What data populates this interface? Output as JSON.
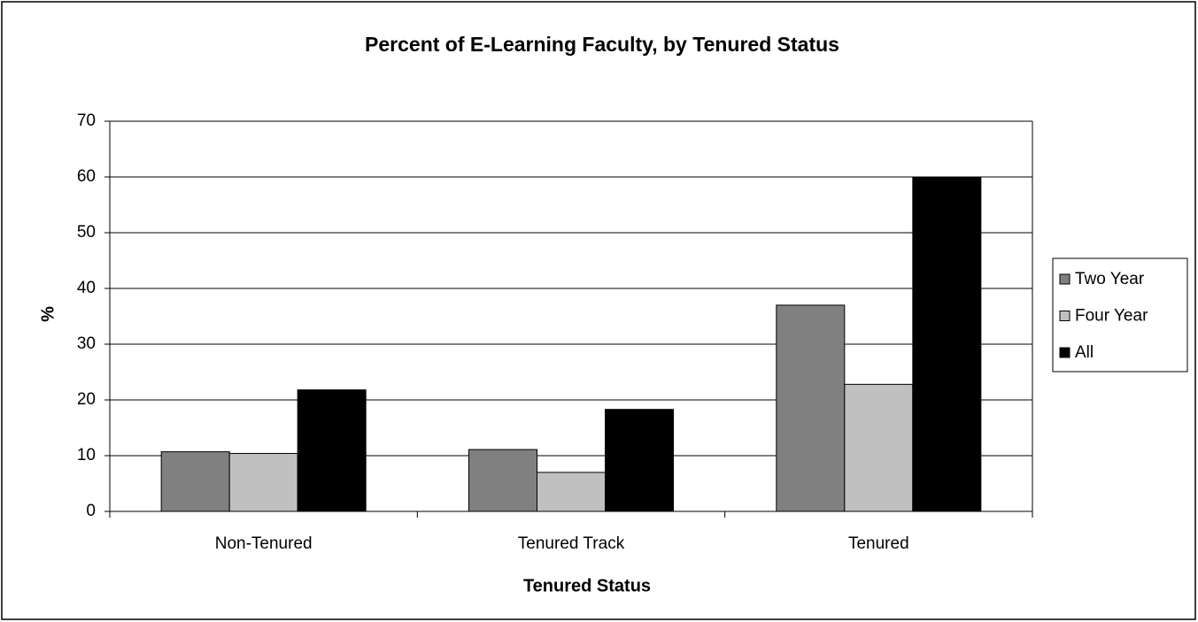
{
  "chart_data": {
    "type": "bar",
    "title": "Percent of E-Learning Faculty, by Tenured Status",
    "x_label": "Tenured Status",
    "y_label": "%",
    "categories": [
      "Non-Tenured",
      "Tenured Track",
      "Tenured"
    ],
    "series": [
      {
        "name": "Two Year",
        "color": "#808080",
        "values": [
          10.7,
          11.1,
          37
        ]
      },
      {
        "name": "Four Year",
        "color": "#c0c0c0",
        "values": [
          10.4,
          7,
          22.8
        ]
      },
      {
        "name": "All",
        "color": "#000000",
        "values": [
          21.8,
          18.3,
          60
        ]
      }
    ],
    "ylim": [
      0,
      70
    ],
    "yticks": [
      0,
      10,
      20,
      30,
      40,
      50,
      60,
      70
    ],
    "grid": true,
    "legend": "right"
  }
}
